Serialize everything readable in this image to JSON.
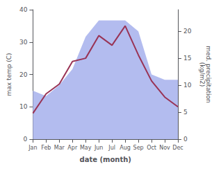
{
  "chart_data": {
    "type": "line",
    "categories": [
      "Jan",
      "Feb",
      "Mar",
      "Apr",
      "May",
      "Jun",
      "Jul",
      "Aug",
      "Sep",
      "Oct",
      "Nov",
      "Dec"
    ],
    "xlabel": "date (month)",
    "ylabel": "max temp (C)",
    "y2label": "med. precipitation\n(kg/m2)",
    "ylim": [
      0,
      40
    ],
    "yticks": [
      0,
      10,
      20,
      30,
      40
    ],
    "y2lim": [
      0,
      24
    ],
    "y2ticks": [
      0,
      5,
      10,
      15,
      20
    ],
    "grid": false,
    "series": [
      {
        "type": "line",
        "color": "#993355",
        "values": [
          8,
          14,
          17,
          24,
          25,
          32,
          29,
          35,
          26,
          18,
          13,
          10
        ]
      },
      {
        "type": "area",
        "color": "#b3bcef",
        "axis": "y2",
        "values": [
          9,
          8,
          10,
          13,
          19,
          22,
          22,
          22,
          20,
          12,
          11,
          11
        ]
      }
    ]
  }
}
